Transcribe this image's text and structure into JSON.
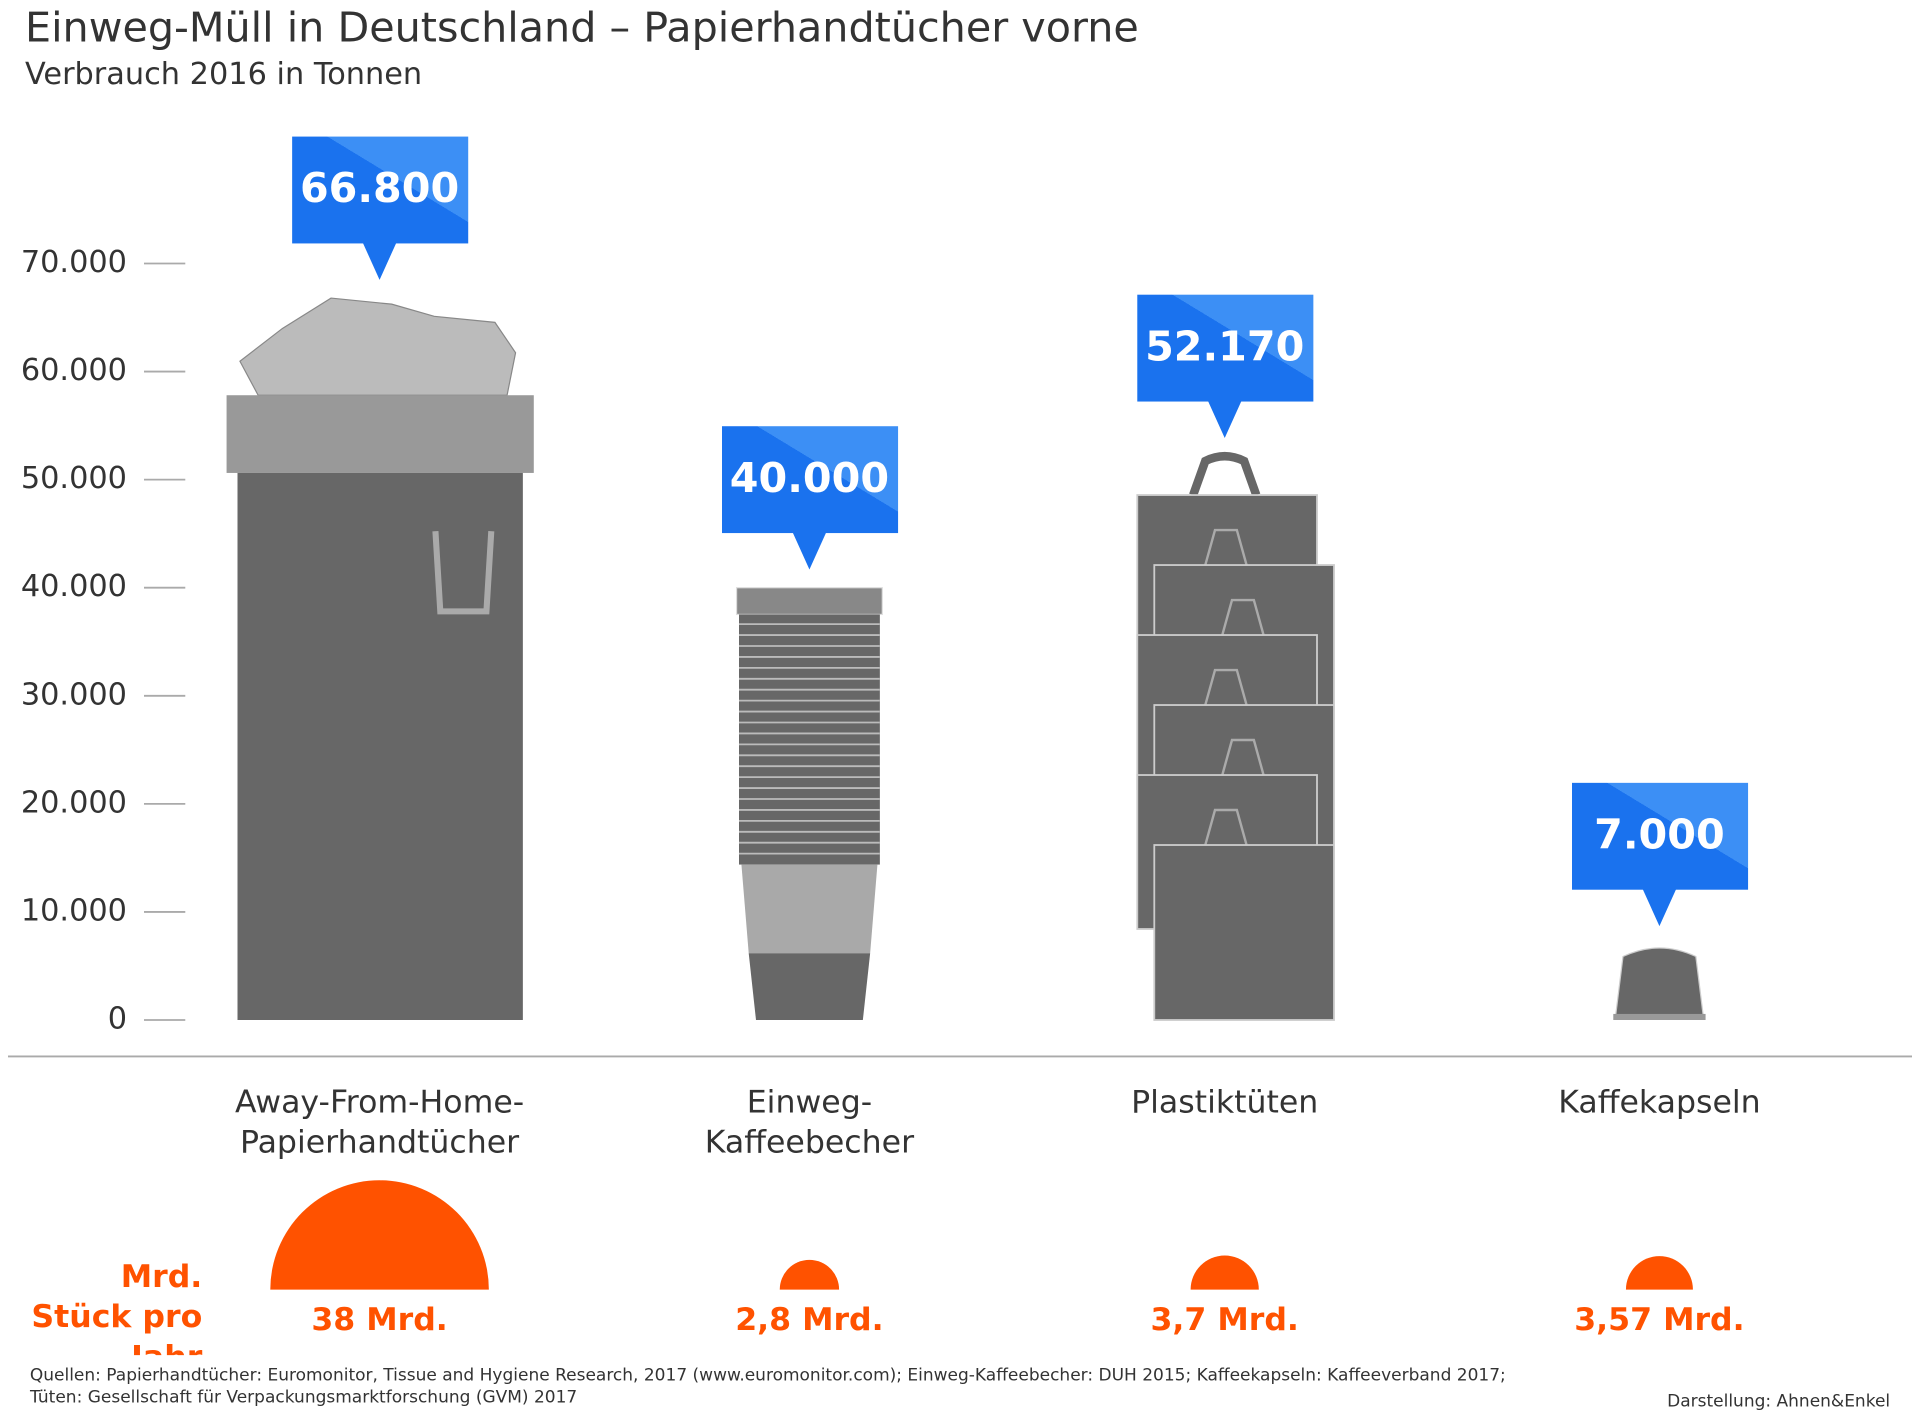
{
  "chart_data": {
    "type": "bar",
    "title": "Einweg-Müll in Deutschland – Papierhandtücher vorne",
    "subtitle": "Verbrauch 2016 in Tonnen",
    "categories": [
      "Away-From-Home-Papierhandtücher",
      "Einweg-Kaffeebecher",
      "Plastiktüten",
      "Kaffekapseln"
    ],
    "values": [
      66800,
      40000,
      52170,
      7000
    ],
    "value_labels": [
      "66.800",
      "40.000",
      "52.170",
      "7.000"
    ],
    "color": "#676767",
    "label_color": "#1a72ee",
    "ylim": [
      0,
      70000
    ],
    "yticks": [
      0,
      {
        "value": 10000,
        "label": "10.000"
      },
      {
        "value": 20000,
        "label": "20.000"
      },
      {
        "value": 30000,
        "label": "30.000"
      },
      {
        "value": 40000,
        "label": "40.000"
      },
      {
        "value": 50000,
        "label": "50.000"
      },
      {
        "value": 60000,
        "label": "60.000"
      },
      {
        "value": 70000,
        "label": "70.000"
      }
    ],
    "pieces": {
      "name": "Mrd. Stück pro Jahr",
      "values": [
        38,
        2.8,
        3.7,
        3.57
      ],
      "value_labels": [
        "38 Mrd.",
        "2,8 Mrd.",
        "3,7 Mrd.",
        "3,57 Mrd."
      ],
      "color": "#ff5200"
    },
    "source": "Quellen: Papierhandtücher: Euromonitor, Tissue and Hygiene Research, 2017 (www.euromonitor.com); Einweg-Kaffeebecher: DUH 2015; Kaffeekapseln: Kaffeeverband 2017; Tüten: Gesellschaft für Verpackungsmarktforschung (GVM) 2017",
    "credit": "Darstellung: Ahnen&Enkel"
  }
}
